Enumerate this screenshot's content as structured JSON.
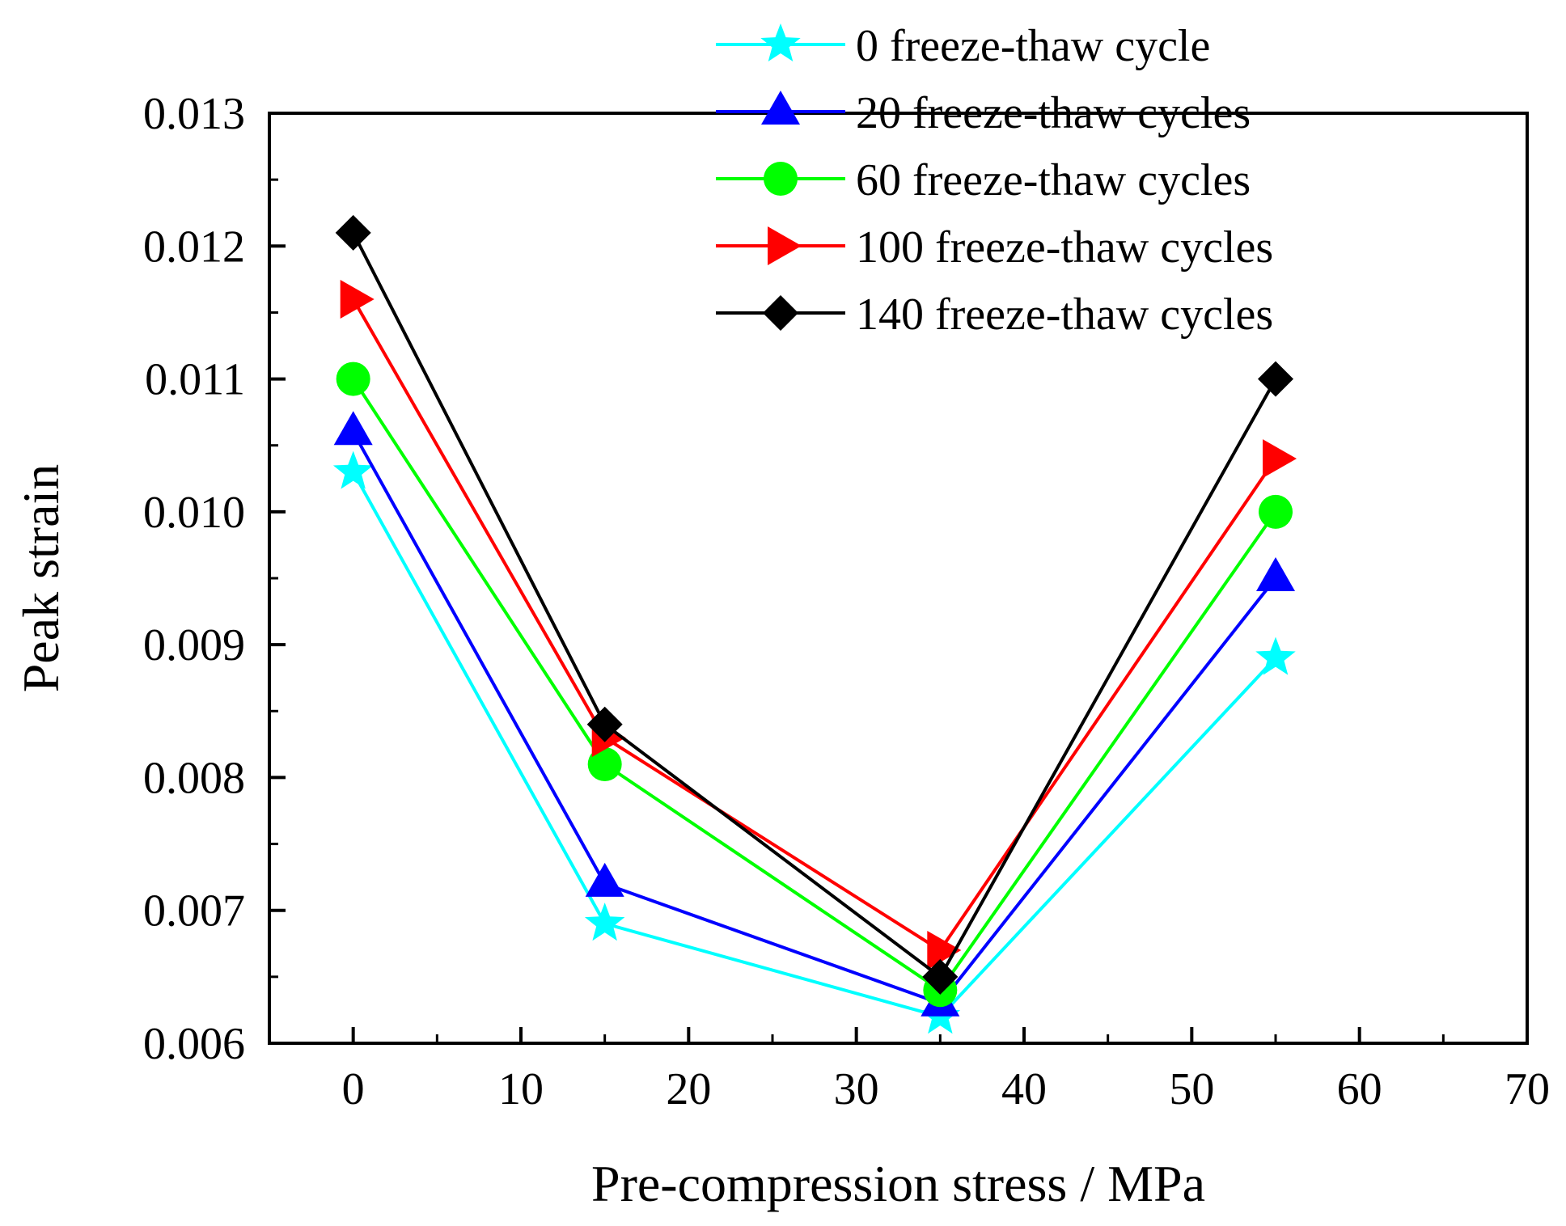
{
  "chart_data": {
    "type": "line",
    "title": "",
    "xlabel": "Pre-compression stress / MPa",
    "ylabel": "Peak strain",
    "xlim": [
      -5,
      70
    ],
    "ylim": [
      0.006,
      0.013
    ],
    "x_ticks": [
      0,
      10,
      20,
      30,
      40,
      50,
      60,
      70
    ],
    "x_tick_labels": [
      "0",
      "10",
      "20",
      "30",
      "40",
      "50",
      "60",
      "70"
    ],
    "y_ticks": [
      0.006,
      0.007,
      0.008,
      0.009,
      0.01,
      0.011,
      0.012,
      0.013
    ],
    "y_tick_labels": [
      "0.006",
      "0.007",
      "0.008",
      "0.009",
      "0.010",
      "0.011",
      "0.012",
      "0.013"
    ],
    "grid": false,
    "legend_position": "top-right",
    "x": [
      0,
      15,
      35,
      55
    ],
    "series": [
      {
        "name": "0 freeze-thaw cycle",
        "color": "#00FFFF",
        "marker": "star",
        "values": [
          0.0103,
          0.0069,
          0.0062,
          0.0089
        ]
      },
      {
        "name": "20 freeze-thaw cycles",
        "color": "#0000FF",
        "marker": "triangle-up",
        "values": [
          0.0106,
          0.0072,
          0.0063,
          0.0095
        ]
      },
      {
        "name": "60 freeze-thaw cycles",
        "color": "#00FF00",
        "marker": "circle",
        "values": [
          0.011,
          0.0081,
          0.0064,
          0.01
        ]
      },
      {
        "name": "100 freeze-thaw cycles",
        "color": "#FF0000",
        "marker": "triangle-right",
        "values": [
          0.0116,
          0.0083,
          0.0067,
          0.0104
        ]
      },
      {
        "name": "140 freeze-thaw cycles",
        "color": "#000000",
        "marker": "diamond",
        "values": [
          0.0121,
          0.0084,
          0.0065,
          0.011
        ]
      }
    ]
  }
}
